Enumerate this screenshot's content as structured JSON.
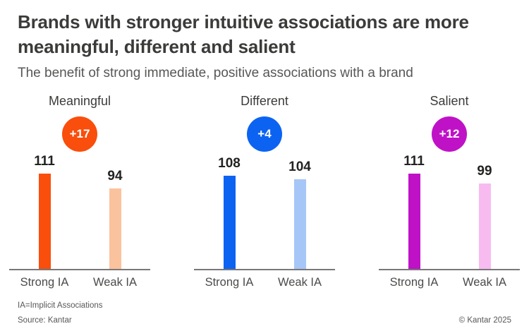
{
  "header": {
    "title": "Brands with stronger intuitive associations are more meaningful, different and salient",
    "subtitle": "The benefit of strong immediate, positive associations with a brand"
  },
  "chart_data": {
    "type": "bar",
    "categories": [
      "Strong IA",
      "Weak IA"
    ],
    "groups": [
      {
        "name": "Meaningful",
        "diff": "+17",
        "values": [
          111,
          94
        ],
        "strong_color": "#F94E0C",
        "weak_color": "#FBC29E",
        "badge_color": "#F94E0C"
      },
      {
        "name": "Different",
        "diff": "+4",
        "values": [
          108,
          104
        ],
        "strong_color": "#0C63F2",
        "weak_color": "#A5C6F7",
        "badge_color": "#0C63F2"
      },
      {
        "name": "Salient",
        "diff": "+12",
        "values": [
          111,
          99
        ],
        "strong_color": "#BF12C7",
        "weak_color": "#F8BBF0",
        "badge_color": "#BF12C7"
      }
    ],
    "ylim": [
      0,
      120
    ],
    "grid": false,
    "value_labels": true,
    "axis_color": "#787878"
  },
  "footer": {
    "note": "IA=Implicit Associations",
    "source": "Source: Kantar",
    "copyright": "© Kantar 2025"
  }
}
